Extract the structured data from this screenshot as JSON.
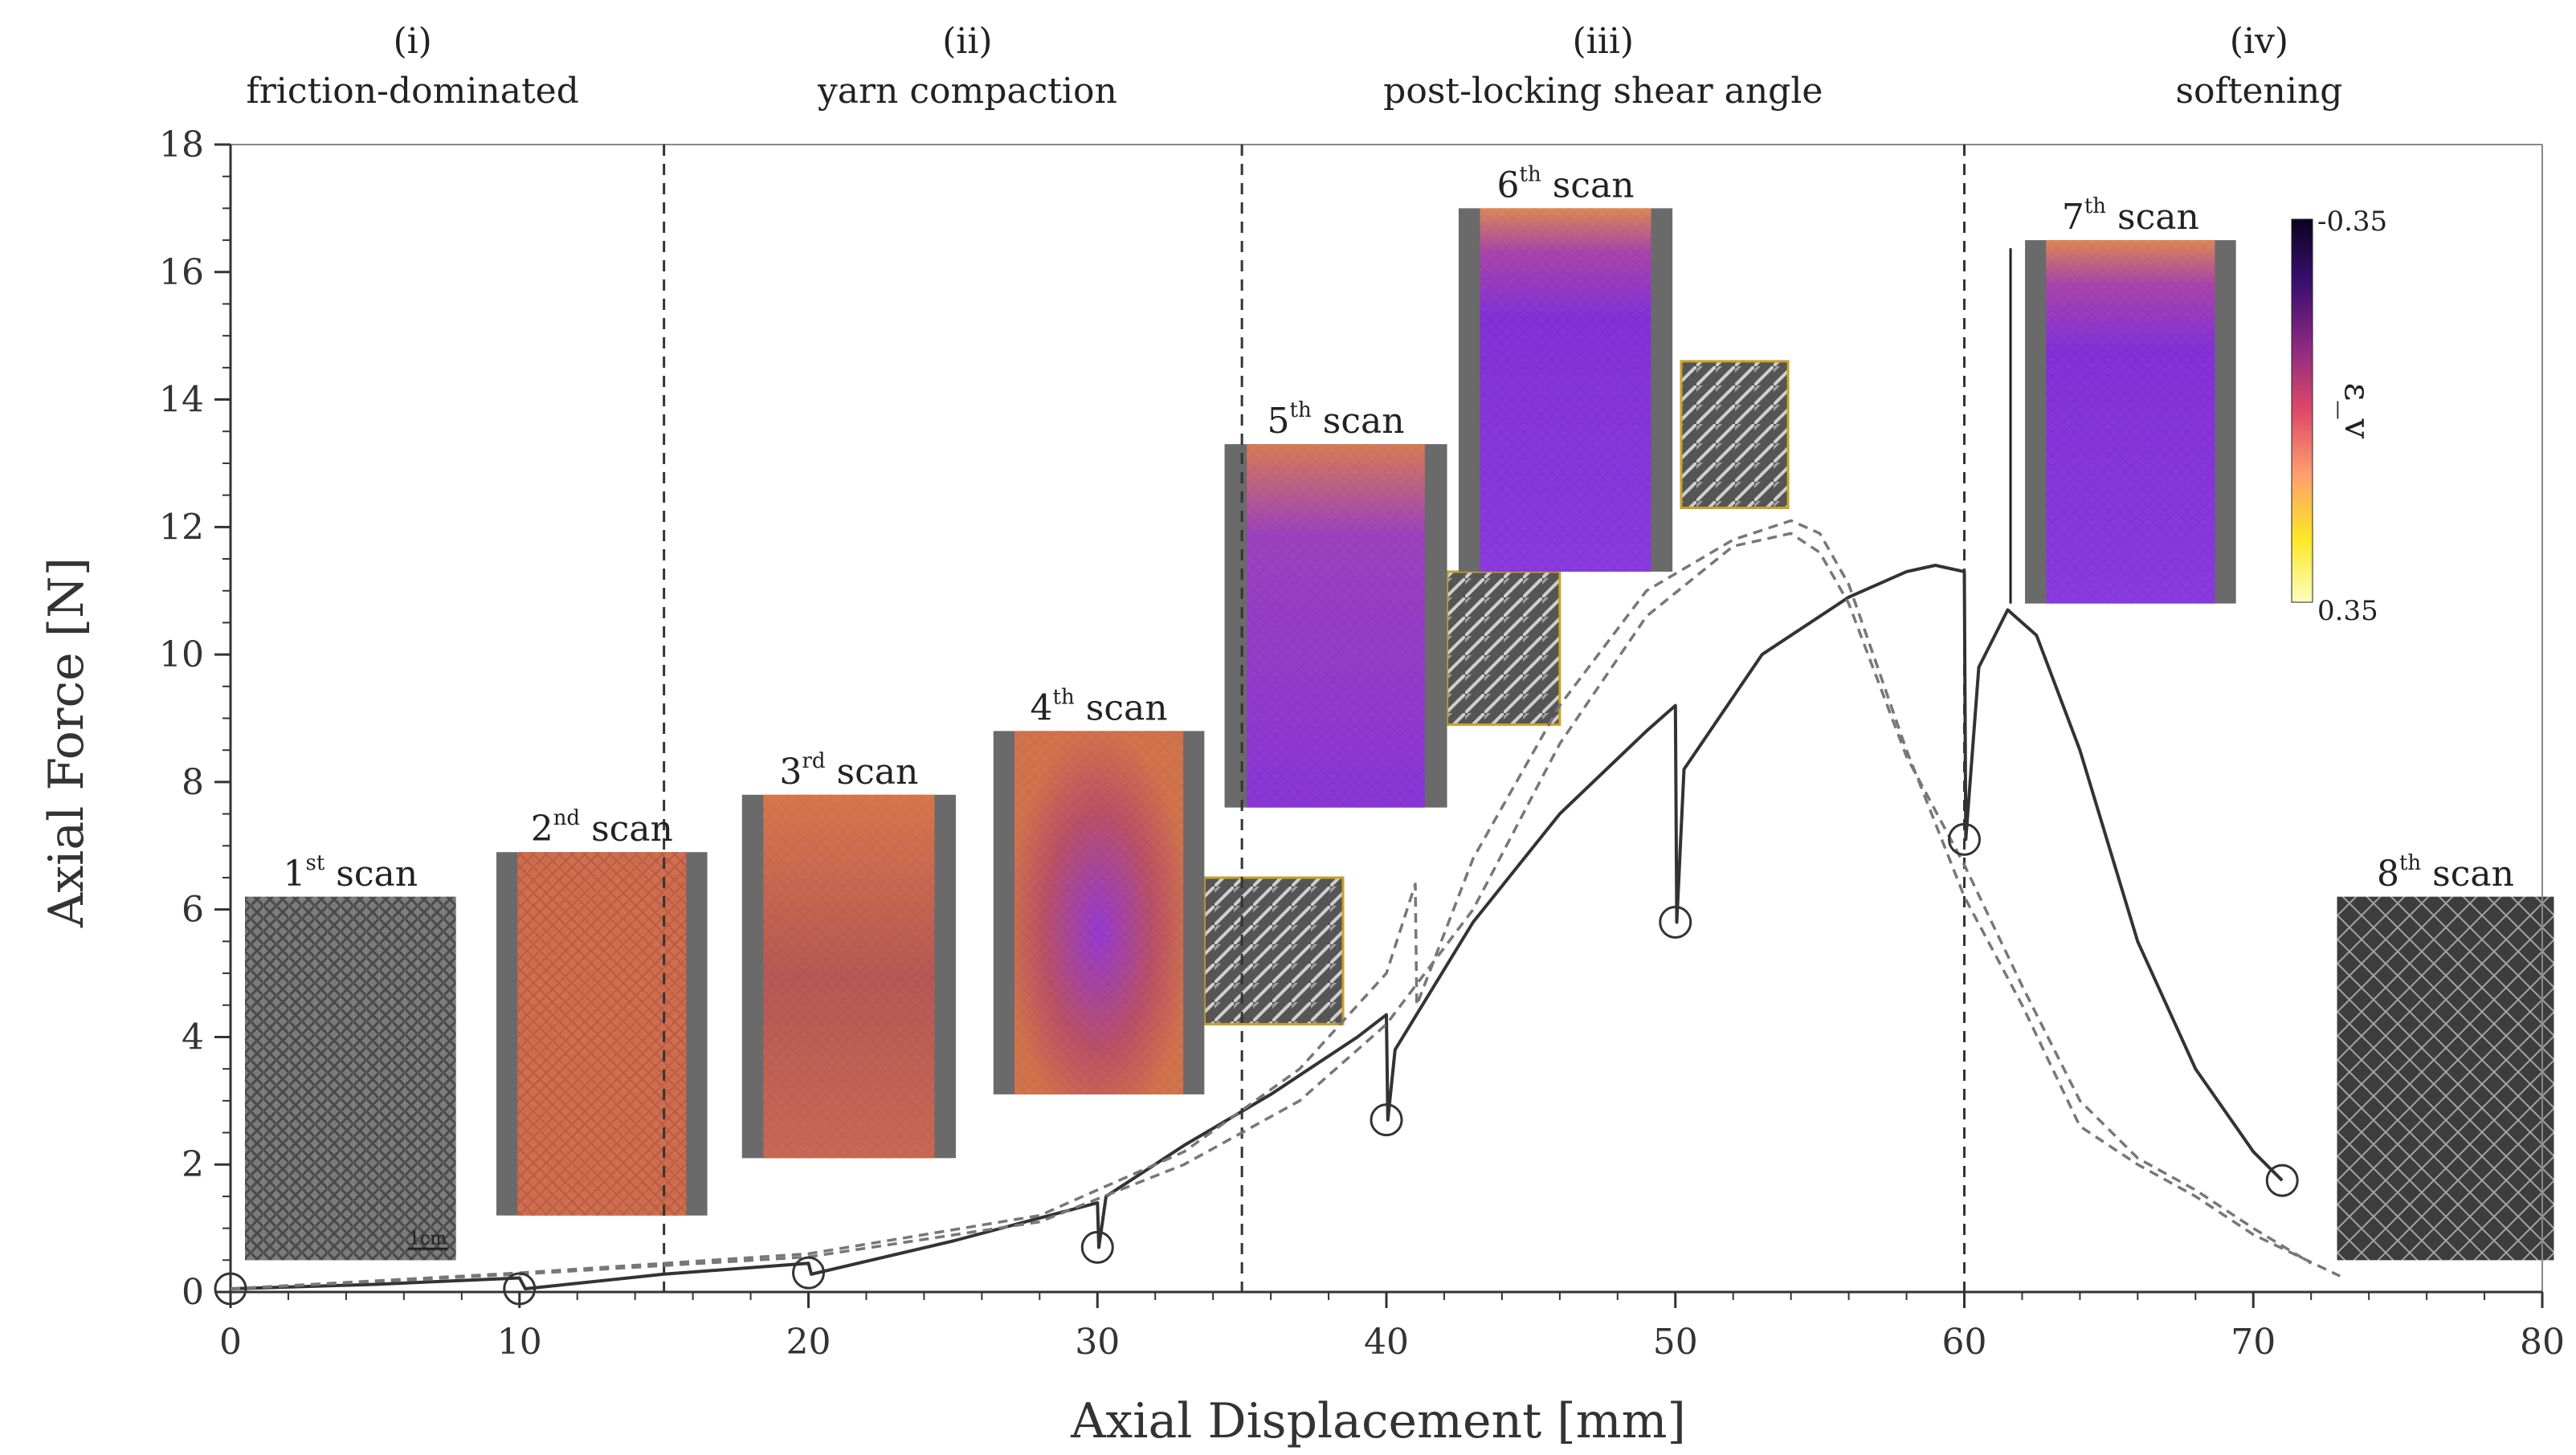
{
  "chart_data": {
    "type": "line",
    "xlabel": "Axial Displacement [mm]",
    "ylabel": "Axial Force [N]",
    "xlim": [
      0,
      80
    ],
    "ylim": [
      0,
      18
    ],
    "xticks": [
      0,
      10,
      20,
      30,
      40,
      50,
      60,
      70,
      80
    ],
    "yticks": [
      0,
      2,
      4,
      6,
      8,
      10,
      12,
      14,
      16,
      18
    ],
    "grid": false,
    "region_boundaries": [
      15,
      35,
      60
    ],
    "regions": [
      {
        "numeral": "(i)",
        "label": "friction-dominated",
        "x_center": 6.3
      },
      {
        "numeral": "(ii)",
        "label": "yarn compaction",
        "x_center": 25.5
      },
      {
        "numeral": "(iii)",
        "label": "post-locking shear angle",
        "x_center": 47.5
      },
      {
        "numeral": "(iv)",
        "label": "softening",
        "x_center": 70.2
      }
    ],
    "series": [
      {
        "style": "solid",
        "color": "#333333",
        "x": [
          0,
          5,
          10,
          10.2,
          15,
          20,
          20.1,
          25,
          30,
          30.05,
          30.3,
          33,
          36,
          39,
          40,
          40.05,
          40.3,
          43,
          46,
          49,
          50,
          50.05,
          50.3,
          53,
          56,
          58,
          59,
          60,
          60.05,
          60.5,
          61.5,
          62.5,
          64,
          66,
          68,
          70,
          71
        ],
        "y": [
          0.05,
          0.12,
          0.22,
          0.05,
          0.28,
          0.45,
          0.28,
          0.8,
          1.4,
          0.7,
          1.5,
          2.3,
          3.1,
          4.0,
          4.35,
          2.7,
          3.8,
          5.8,
          7.5,
          8.8,
          9.2,
          5.8,
          8.2,
          10.0,
          10.9,
          11.3,
          11.4,
          11.3,
          7.1,
          9.8,
          10.7,
          10.3,
          8.5,
          5.5,
          3.5,
          2.2,
          1.75
        ]
      },
      {
        "style": "dashed",
        "color": "#777777",
        "x": [
          0,
          10,
          20,
          28,
          33,
          37,
          40,
          41,
          41.05,
          43,
          46,
          49,
          52,
          54,
          55,
          56,
          57,
          58,
          60,
          62,
          64,
          66,
          68,
          70,
          73
        ],
        "y": [
          0.05,
          0.3,
          0.6,
          1.2,
          2.2,
          3.5,
          5.0,
          6.4,
          4.5,
          6.8,
          9.2,
          11.0,
          11.8,
          12.1,
          11.9,
          11.1,
          9.8,
          8.5,
          6.2,
          4.5,
          2.6,
          2.0,
          1.5,
          0.9,
          0.25
        ]
      },
      {
        "style": "dashed",
        "color": "#777777",
        "x": [
          0,
          10,
          20,
          28,
          33,
          37,
          40,
          43,
          46,
          49,
          52,
          54,
          55,
          56,
          57,
          58,
          60,
          62,
          64,
          66,
          68,
          70,
          72
        ],
        "y": [
          0.05,
          0.28,
          0.55,
          1.1,
          2.0,
          3.0,
          4.2,
          6.0,
          8.6,
          10.6,
          11.7,
          11.9,
          11.6,
          10.8,
          9.6,
          8.4,
          6.7,
          4.8,
          3.0,
          2.1,
          1.6,
          1.0,
          0.45
        ]
      }
    ],
    "scan_markers": [
      {
        "x": 0,
        "y": 0.05
      },
      {
        "x": 10,
        "y": 0.05
      },
      {
        "x": 20,
        "y": 0.3
      },
      {
        "x": 30,
        "y": 0.7
      },
      {
        "x": 40,
        "y": 2.7
      },
      {
        "x": 50,
        "y": 5.8
      },
      {
        "x": 60,
        "y": 7.1
      },
      {
        "x": 71,
        "y": 1.75
      }
    ],
    "scans": [
      {
        "number": "1",
        "suffix": "st",
        "word": "scan",
        "x0": 0.5,
        "x1": 7.8,
        "y_top": 6.2,
        "y_bottom": 0.5,
        "fill": "gray",
        "scale_label": "1cm"
      },
      {
        "number": "2",
        "suffix": "nd",
        "word": "scan",
        "x0": 9.2,
        "x1": 16.5,
        "y_top": 6.9,
        "y_bottom": 1.2,
        "fill": "orange"
      },
      {
        "number": "3",
        "suffix": "rd",
        "word": "scan",
        "x0": 17.7,
        "x1": 25.1,
        "y_top": 7.8,
        "y_bottom": 2.1,
        "fill": "orange-purple"
      },
      {
        "number": "4",
        "suffix": "th",
        "word": "scan",
        "x0": 26.4,
        "x1": 33.7,
        "y_top": 8.8,
        "y_bottom": 3.1,
        "fill": "purple-center"
      },
      {
        "number": "5",
        "suffix": "th",
        "word": "scan",
        "x0": 34.4,
        "x1": 42.1,
        "y_top": 13.3,
        "y_bottom": 7.6,
        "fill": "purple"
      },
      {
        "number": "6",
        "suffix": "th",
        "word": "scan",
        "x0": 42.5,
        "x1": 49.9,
        "y_top": 17.0,
        "y_bottom": 11.3,
        "fill": "purple-dark"
      },
      {
        "number": "7",
        "suffix": "th",
        "word": "scan",
        "x0": 62.1,
        "x1": 69.4,
        "y_top": 16.5,
        "y_bottom": 10.8,
        "fill": "purple-dark"
      },
      {
        "number": "8",
        "suffix": "th",
        "word": "scan",
        "x0": 72.9,
        "x1": 80.4,
        "y_top": 6.2,
        "y_bottom": 0.5,
        "fill": "gray-x"
      }
    ],
    "zoom_insets": [
      {
        "x0": 33.7,
        "x1": 38.5,
        "y_top": 6.5,
        "y_bottom": 4.2
      },
      {
        "x0": 42.1,
        "x1": 46.0,
        "y_top": 11.3,
        "y_bottom": 8.9
      },
      {
        "x0": 50.2,
        "x1": 53.9,
        "y_top": 14.6,
        "y_bottom": 12.3
      }
    ],
    "colorbar": {
      "label": "ε_v",
      "top_label": "-0.35",
      "bottom_label": "0.35",
      "colors": [
        "#0d0221",
        "#3b0f70",
        "#8c2981",
        "#de4968",
        "#fe9f6d",
        "#fde725",
        "#fcfdbf"
      ]
    }
  }
}
